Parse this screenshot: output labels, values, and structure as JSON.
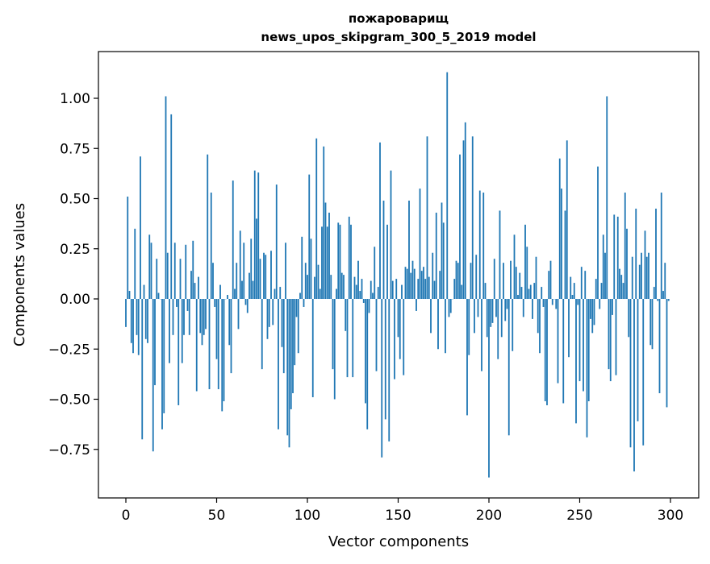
{
  "chart_data": {
    "type": "bar",
    "title": "пожароварищ",
    "subtitle": "news_upos_skipgram_300_5_2019 model",
    "xlabel": "Vector components",
    "ylabel": "Components values",
    "xlim": [
      -15,
      315
    ],
    "ylim": [
      -1.0,
      1.2
    ],
    "xticks": [
      0,
      50,
      100,
      150,
      200,
      250,
      300
    ],
    "xtick_labels": [
      "0",
      "50",
      "100",
      "150",
      "200",
      "250",
      "300"
    ],
    "yticks": [
      -0.75,
      -0.5,
      -0.25,
      0.0,
      0.25,
      0.5,
      0.75,
      1.0
    ],
    "ytick_labels": [
      "−0.75",
      "−0.50",
      "−0.25",
      "0.00",
      "0.25",
      "0.50",
      "0.75",
      "1.00"
    ],
    "grid": false,
    "color": "#1f77b4",
    "values": [
      -0.14,
      0.51,
      0.04,
      -0.22,
      -0.27,
      0.35,
      -0.18,
      -0.28,
      0.71,
      -0.7,
      0.07,
      -0.2,
      -0.22,
      0.32,
      0.28,
      -0.76,
      -0.43,
      0.2,
      0.03,
      0.0,
      -0.65,
      -0.57,
      1.01,
      0.23,
      -0.32,
      0.92,
      -0.18,
      0.28,
      -0.04,
      -0.53,
      0.2,
      -0.32,
      -0.18,
      0.27,
      -0.06,
      -0.18,
      0.14,
      0.29,
      0.08,
      -0.46,
      0.11,
      -0.17,
      -0.23,
      -0.18,
      -0.15,
      0.72,
      -0.45,
      0.53,
      0.18,
      -0.04,
      -0.3,
      -0.45,
      0.07,
      -0.56,
      -0.51,
      0.0,
      0.02,
      -0.23,
      -0.37,
      0.59,
      0.05,
      0.18,
      -0.15,
      0.34,
      0.09,
      0.28,
      -0.03,
      -0.07,
      0.13,
      0.3,
      0.09,
      0.64,
      0.4,
      0.63,
      0.2,
      -0.35,
      0.23,
      0.22,
      -0.2,
      -0.14,
      0.24,
      -0.13,
      0.05,
      0.57,
      -0.65,
      0.06,
      -0.24,
      -0.37,
      0.28,
      -0.68,
      -0.74,
      -0.55,
      -0.47,
      -0.33,
      -0.09,
      -0.27,
      0.03,
      0.31,
      -0.04,
      0.18,
      0.12,
      0.62,
      0.3,
      -0.49,
      0.11,
      0.8,
      0.17,
      0.05,
      0.36,
      0.76,
      0.48,
      0.36,
      0.43,
      0.12,
      -0.35,
      -0.5,
      0.05,
      0.38,
      0.37,
      0.13,
      0.12,
      -0.16,
      -0.39,
      0.41,
      0.37,
      -0.39,
      0.11,
      0.07,
      0.19,
      0.04,
      0.1,
      -0.02,
      -0.52,
      -0.65,
      -0.07,
      0.09,
      0.03,
      0.26,
      -0.36,
      0.06,
      0.78,
      -0.79,
      0.49,
      -0.6,
      0.37,
      -0.71,
      0.64,
      0.09,
      -0.4,
      0.1,
      -0.19,
      -0.3,
      0.07,
      -0.38,
      0.16,
      0.15,
      0.49,
      0.13,
      0.19,
      0.15,
      -0.06,
      0.1,
      0.55,
      0.14,
      0.16,
      0.1,
      0.81,
      0.11,
      -0.17,
      0.23,
      0.09,
      0.43,
      -0.25,
      0.14,
      0.48,
      0.38,
      -0.27,
      1.13,
      -0.09,
      -0.07,
      0.0,
      0.1,
      0.19,
      0.18,
      0.72,
      0.07,
      0.79,
      0.88,
      -0.58,
      -0.28,
      0.18,
      0.81,
      -0.17,
      0.22,
      -0.09,
      0.54,
      -0.36,
      0.53,
      0.08,
      -0.19,
      -0.89,
      -0.14,
      -0.12,
      0.2,
      -0.09,
      -0.3,
      0.44,
      -0.19,
      0.18,
      -0.11,
      -0.05,
      -0.68,
      0.19,
      -0.26,
      0.32,
      0.16,
      0.02,
      0.13,
      0.06,
      -0.09,
      0.37,
      0.26,
      0.05,
      0.07,
      -0.1,
      0.08,
      0.21,
      -0.17,
      -0.27,
      0.06,
      -0.04,
      -0.51,
      -0.53,
      0.14,
      0.19,
      -0.03,
      0.0,
      -0.05,
      -0.42,
      0.7,
      0.55,
      -0.52,
      0.44,
      0.79,
      -0.29,
      0.11,
      0.02,
      0.08,
      -0.62,
      -0.03,
      -0.41,
      0.16,
      -0.46,
      0.14,
      -0.69,
      -0.51,
      -0.1,
      -0.17,
      -0.13,
      0.1,
      0.66,
      -0.05,
      0.08,
      0.32,
      0.23,
      1.01,
      -0.35,
      -0.41,
      -0.08,
      0.42,
      -0.38,
      0.41,
      0.15,
      0.12,
      0.08,
      0.53,
      0.35,
      -0.19,
      -0.74,
      0.21,
      -0.86,
      0.45,
      -0.61,
      0.17,
      0.23,
      -0.73,
      0.34,
      0.21,
      0.23,
      -0.23,
      -0.25,
      0.06,
      0.45,
      -0.01,
      -0.47,
      0.53,
      0.04,
      0.18,
      -0.54,
      -0.01
    ]
  }
}
